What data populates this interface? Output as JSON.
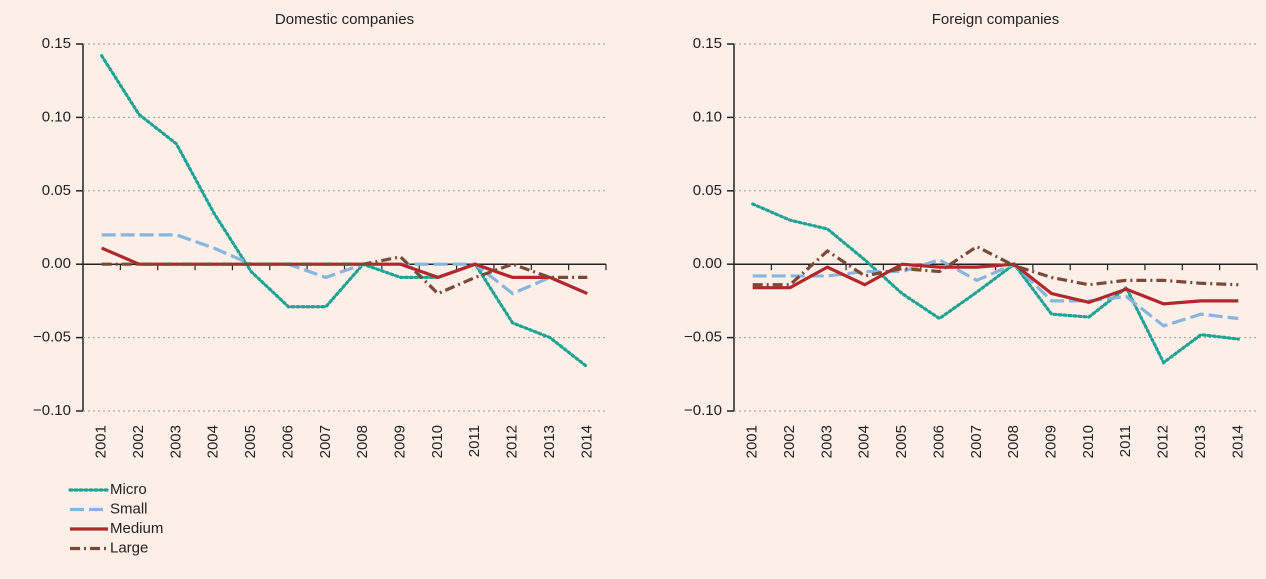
{
  "chart_data": [
    {
      "type": "line",
      "title": "Domestic companies",
      "categories": [
        "2001",
        "2002",
        "2003",
        "2004",
        "2005",
        "2006",
        "2007",
        "2008",
        "2009",
        "2010",
        "2011",
        "2012",
        "2013",
        "2014"
      ],
      "ylim": [
        -0.1,
        0.15
      ],
      "yticks": [
        {
          "value": -0.1,
          "label": "−0.10"
        },
        {
          "value": -0.05,
          "label": "−0.05"
        },
        {
          "value": 0,
          "label": "0.00"
        },
        0.05,
        {
          "value": 0.1,
          "label": "0.10"
        },
        0.15
      ],
      "grid": true,
      "series": [
        {
          "name": "Micro",
          "color": "#1fa394",
          "style": "dotted",
          "values": [
            0.142,
            0.102,
            0.082,
            0.035,
            -0.005,
            -0.029,
            -0.029,
            0.0,
            -0.009,
            -0.009,
            0.0,
            -0.04,
            -0.05,
            -0.07
          ]
        },
        {
          "name": "Small",
          "color": "#86b6dc",
          "style": "dashed",
          "values": [
            0.02,
            0.02,
            0.02,
            0.011,
            0.0,
            0.0,
            -0.009,
            0.0,
            0.0,
            0.0,
            0.0,
            -0.02,
            -0.009,
            -0.02
          ]
        },
        {
          "name": "Medium",
          "color": "#b3262b",
          "style": "solid",
          "values": [
            0.011,
            0.0,
            0.0,
            0.0,
            0.0,
            0.0,
            0.0,
            0.0,
            0.0,
            -0.009,
            0.0,
            -0.009,
            -0.009,
            -0.02
          ]
        },
        {
          "name": "Large",
          "color": "#7a4a36",
          "style": "dashdot",
          "values": [
            0.0,
            0.0,
            0.0,
            0.0,
            0.0,
            0.0,
            0.0,
            0.0,
            0.005,
            -0.02,
            -0.009,
            0.0,
            -0.009,
            -0.009
          ]
        }
      ]
    },
    {
      "type": "line",
      "title": "Foreign companies",
      "categories": [
        "2001",
        "2002",
        "2003",
        "2004",
        "2005",
        "2006",
        "2007",
        "2008",
        "2009",
        "2010",
        "2011",
        "2012",
        "2013",
        "2014"
      ],
      "ylim": [
        -0.1,
        0.15
      ],
      "yticks": [
        {
          "value": -0.1,
          "label": "−0.10"
        },
        {
          "value": -0.05,
          "label": "−0.05"
        },
        {
          "value": 0,
          "label": "0.00"
        },
        0.05,
        {
          "value": 0.1,
          "label": "0.10"
        },
        0.15
      ],
      "grid": true,
      "series": [
        {
          "color": "#1fa394",
          "style": "dotted",
          "values": [
            0.041,
            0.03,
            0.024,
            0.003,
            -0.02,
            -0.037,
            -0.019,
            0.0,
            -0.034,
            -0.036,
            -0.016,
            -0.067,
            -0.048,
            -0.051
          ]
        },
        {
          "color": "#86b6dc",
          "style": "dashed",
          "values": [
            -0.008,
            -0.008,
            -0.008,
            -0.005,
            -0.005,
            0.003,
            -0.011,
            0.0,
            -0.025,
            -0.025,
            -0.022,
            -0.042,
            -0.034,
            -0.037
          ]
        },
        {
          "color": "#b3262b",
          "style": "solid",
          "values": [
            -0.016,
            -0.016,
            -0.002,
            -0.014,
            0.0,
            -0.002,
            -0.002,
            0.0,
            -0.02,
            -0.026,
            -0.017,
            -0.027,
            -0.025,
            -0.025
          ]
        },
        {
          "color": "#7a4a36",
          "style": "dashdot",
          "values": [
            -0.014,
            -0.014,
            0.009,
            -0.008,
            -0.003,
            -0.005,
            0.012,
            -0.001,
            -0.009,
            -0.014,
            -0.011,
            -0.011,
            -0.013,
            -0.014
          ]
        }
      ]
    }
  ]
}
